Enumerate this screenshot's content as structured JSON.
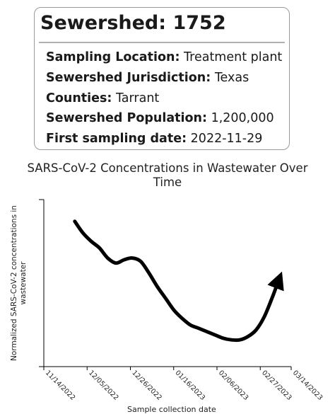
{
  "card": {
    "title": "Sewershed: 1752",
    "rows": [
      {
        "key": "Sampling Location:",
        "value": "Treatment plant"
      },
      {
        "key": "Sewershed Jurisdiction:",
        "value": "Texas"
      },
      {
        "key": "Counties:",
        "value": "Tarrant"
      },
      {
        "key": "Sewershed Population:",
        "value": "1,200,000"
      },
      {
        "key": "First sampling date:",
        "value": "2022-11-29"
      }
    ]
  },
  "chart_data": {
    "type": "line",
    "title_line1": "SARS-CoV-2 Concentrations in Wastewater Over",
    "title_line2": "Time",
    "xlabel": "Sample collection date",
    "ylabel_line1": "Normalized SARS-CoV-2 concentrations in",
    "ylabel_line2": "wastewater",
    "x_ticks": [
      "11/14/2022",
      "12/05/2022",
      "12/26/2022",
      "01/16/2023",
      "02/06/2023",
      "02/27/2023",
      "03/14/2023"
    ],
    "xlim": [
      "2022-11-14",
      "2023-03-14"
    ],
    "ylim": [
      0,
      1
    ],
    "grid": false,
    "line_color": "#000000",
    "series": [
      {
        "points": [
          {
            "x": "2022-11-29",
            "y": 0.87
          },
          {
            "x": "2022-12-03",
            "y": 0.8
          },
          {
            "x": "2022-12-07",
            "y": 0.75
          },
          {
            "x": "2022-12-11",
            "y": 0.71
          },
          {
            "x": "2022-12-15",
            "y": 0.65
          },
          {
            "x": "2022-12-19",
            "y": 0.62
          },
          {
            "x": "2022-12-23",
            "y": 0.64
          },
          {
            "x": "2022-12-27",
            "y": 0.65
          },
          {
            "x": "2022-12-31",
            "y": 0.63
          },
          {
            "x": "2023-01-04",
            "y": 0.56
          },
          {
            "x": "2023-01-08",
            "y": 0.48
          },
          {
            "x": "2023-01-12",
            "y": 0.41
          },
          {
            "x": "2023-01-16",
            "y": 0.34
          },
          {
            "x": "2023-01-20",
            "y": 0.29
          },
          {
            "x": "2023-01-24",
            "y": 0.25
          },
          {
            "x": "2023-01-28",
            "y": 0.23
          },
          {
            "x": "2023-02-01",
            "y": 0.21
          },
          {
            "x": "2023-02-05",
            "y": 0.19
          },
          {
            "x": "2023-02-09",
            "y": 0.17
          },
          {
            "x": "2023-02-13",
            "y": 0.16
          },
          {
            "x": "2023-02-17",
            "y": 0.16
          },
          {
            "x": "2023-02-21",
            "y": 0.18
          },
          {
            "x": "2023-02-25",
            "y": 0.22
          },
          {
            "x": "2023-03-01",
            "y": 0.3
          },
          {
            "x": "2023-03-05",
            "y": 0.42
          },
          {
            "x": "2023-03-08",
            "y": 0.52
          }
        ]
      }
    ]
  }
}
